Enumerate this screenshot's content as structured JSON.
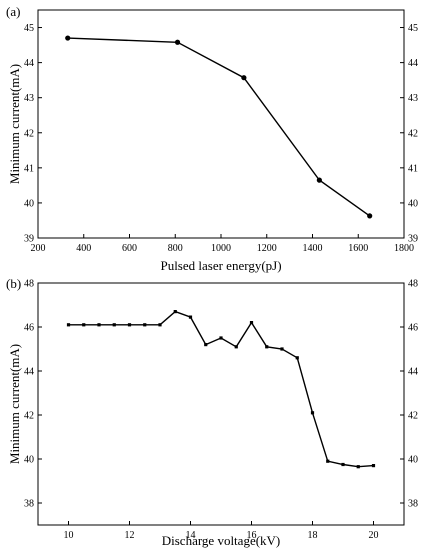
{
  "chart_data": [
    {
      "panel_label": "(a)",
      "type": "line",
      "xlabel": "Pulsed laser energy(pJ)",
      "ylabel": "Minimum current(mA)",
      "xlim": [
        200,
        1800
      ],
      "ylim": [
        39,
        45.5
      ],
      "xticks": [
        200,
        400,
        600,
        800,
        1000,
        1200,
        1400,
        1600,
        1800
      ],
      "yticks": [
        39,
        40,
        41,
        42,
        43,
        44,
        45
      ],
      "right_axis_ticks": true,
      "grid": false,
      "marker": "circle",
      "series": [
        {
          "x": [
            330,
            810,
            1100,
            1430,
            1650
          ],
          "values": [
            44.7,
            44.58,
            43.57,
            40.65,
            39.63
          ]
        }
      ]
    },
    {
      "panel_label": "(b)",
      "type": "line",
      "xlabel": "Discharge voltage(kV)",
      "ylabel": "Minimum current(mA)",
      "xlim": [
        9,
        21
      ],
      "ylim": [
        37,
        48
      ],
      "xticks": [
        10,
        12,
        14,
        16,
        18,
        20
      ],
      "yticks": [
        38,
        40,
        42,
        44,
        46,
        48
      ],
      "right_axis_ticks": true,
      "grid": false,
      "marker": "square",
      "series": [
        {
          "x": [
            10,
            10.5,
            11,
            11.5,
            12,
            12.5,
            13,
            13.5,
            14,
            14.5,
            15,
            15.5,
            16,
            16.5,
            17,
            17.5,
            18,
            18.5,
            19,
            19.5,
            20
          ],
          "values": [
            46.1,
            46.1,
            46.1,
            46.1,
            46.1,
            46.1,
            46.1,
            46.7,
            46.45,
            45.2,
            45.5,
            45.1,
            46.2,
            45.1,
            45.0,
            44.6,
            42.1,
            39.9,
            39.75,
            39.65,
            39.7
          ]
        }
      ]
    }
  ]
}
